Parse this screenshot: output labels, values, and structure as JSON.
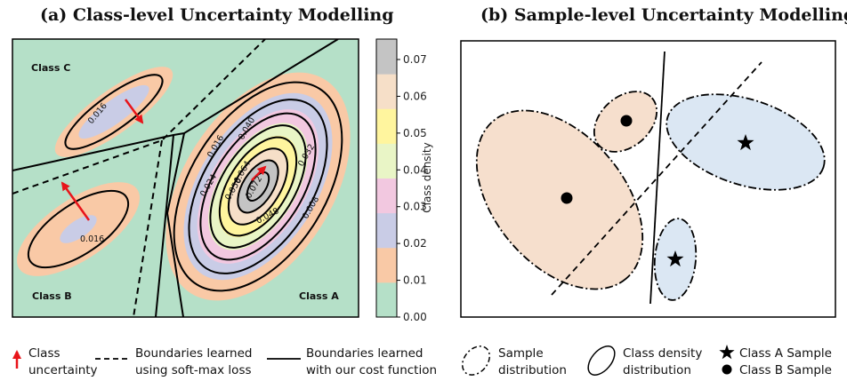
{
  "panel_a": {
    "title": "(a) Class-level Uncertainty Modelling",
    "class_labels": [
      "Class C",
      "Class B",
      "Class A"
    ],
    "contour_labels": [
      "0.016",
      "0.016",
      "0.016",
      "0.040",
      "0.032",
      "0.024",
      "0.056",
      "0.064",
      "0.072",
      "0.048",
      "0.008"
    ],
    "colorbar": {
      "label": "Class density",
      "ticks": [
        "0.00",
        "0.01",
        "0.02",
        "0.03",
        "0.04",
        "0.05",
        "0.06",
        "0.07"
      ],
      "colors": [
        "#b5e0c8",
        "#f9c9a6",
        "#c9cce6",
        "#f2c8e0",
        "#e9f5c6",
        "#fff59e",
        "#f6dfc8",
        "#c4c4c4"
      ]
    }
  },
  "panel_b": {
    "title": "(b) Sample-level Uncertainty Modelling"
  },
  "legend": {
    "class_uncertainty": [
      "Class",
      "uncertainty"
    ],
    "softmax": [
      "Boundaries learned",
      "using soft-max loss"
    ],
    "ours": [
      "Boundaries learned",
      "with our cost function"
    ],
    "sample_dist": [
      "Sample",
      "distribution"
    ],
    "class_density": [
      "Class density",
      "distribution"
    ],
    "class_a_sample": "Class A Sample",
    "class_b_sample": "Class B Sample"
  },
  "colors": {
    "background_a": "#b5e0c8",
    "orange": "#f9c9a6",
    "blue": "#c9cce6",
    "arrow": "#e8141a",
    "sample_orange": "#f6dfcd",
    "sample_blue": "#dbe7f3"
  }
}
